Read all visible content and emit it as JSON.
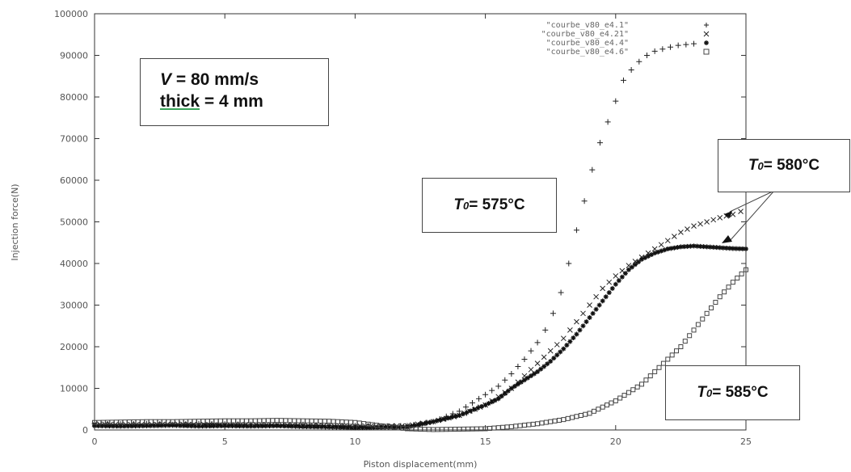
{
  "chart_data": {
    "type": "scatter",
    "title": "",
    "xlabel": "Piston displacement(mm)",
    "ylabel": "Injection force(N)",
    "xlim": [
      0,
      25
    ],
    "ylim": [
      0,
      100000
    ],
    "x_ticks": [
      0,
      5,
      10,
      15,
      20,
      25
    ],
    "x_tick_labels": [
      "0",
      "5",
      "10",
      "15",
      "20",
      "25"
    ],
    "y_ticks": [
      0,
      10000,
      20000,
      30000,
      40000,
      50000,
      60000,
      70000,
      80000,
      90000,
      100000
    ],
    "y_tick_labels": [
      "0",
      "10000",
      "20000",
      "30000",
      "40000",
      "50000",
      "60000",
      "70000",
      "80000",
      "90000",
      "100000"
    ],
    "grid": false,
    "legend_position": "top-right",
    "series": [
      {
        "name": "\"courbe_v80_e4.1\"",
        "marker": "+",
        "x": [
          0,
          1,
          2,
          3,
          4,
          5,
          6,
          7,
          8,
          9,
          10,
          11,
          12,
          13,
          14,
          15,
          15.5,
          16,
          16.5,
          17,
          17.3,
          17.6,
          17.9,
          18.2,
          18.5,
          18.8,
          19.1,
          19.4,
          19.7,
          20,
          20.3,
          20.6,
          20.9,
          21.2,
          21.5,
          21.8,
          22.1,
          22.4,
          22.7,
          23.0
        ],
        "y": [
          1500,
          1400,
          1500,
          1300,
          1500,
          1400,
          1300,
          1200,
          1300,
          1100,
          1000,
          900,
          1000,
          2000,
          4500,
          8500,
          10500,
          13500,
          17000,
          21000,
          24000,
          28000,
          33000,
          40000,
          48000,
          55000,
          62500,
          69000,
          74000,
          79000,
          84000,
          86500,
          88500,
          90000,
          91000,
          91500,
          92000,
          92400,
          92600,
          92800
        ]
      },
      {
        "name": "\"courbe_v80_e4.21\"",
        "marker": "x",
        "x": [
          0,
          1,
          2,
          3,
          4,
          5,
          6,
          7,
          8,
          9,
          10,
          11,
          12,
          13,
          14,
          15,
          15.5,
          16,
          16.5,
          17,
          17.5,
          18,
          18.5,
          19,
          19.5,
          20,
          20.5,
          21,
          21.5,
          22,
          22.5,
          23,
          23.5,
          24,
          24.5,
          24.8
        ],
        "y": [
          1400,
          1300,
          1300,
          1400,
          1300,
          1200,
          1300,
          1200,
          1100,
          1000,
          900,
          900,
          1000,
          2000,
          3500,
          6000,
          8000,
          10000,
          13000,
          16000,
          19000,
          22000,
          26000,
          30000,
          34000,
          37000,
          39500,
          41500,
          43500,
          45500,
          47500,
          49000,
          50000,
          51000,
          51800,
          52500
        ]
      },
      {
        "name": "\"courbe_v80_e4.4\"",
        "marker": "*",
        "x": [
          0,
          1,
          2,
          3,
          4,
          5,
          6,
          7,
          8,
          9,
          10,
          11,
          12,
          13,
          14,
          15,
          15.5,
          16,
          16.5,
          17,
          17.5,
          18,
          18.5,
          19,
          19.5,
          20,
          20.5,
          21,
          21.5,
          22,
          22.5,
          23,
          23.5,
          24,
          24.5,
          25
        ],
        "y": [
          1000,
          900,
          1000,
          1100,
          900,
          1000,
          900,
          1000,
          800,
          700,
          500,
          600,
          700,
          2000,
          3500,
          6000,
          7500,
          10000,
          12000,
          14000,
          16500,
          19500,
          23000,
          27000,
          31000,
          35000,
          38500,
          41000,
          42500,
          43500,
          44000,
          44200,
          44000,
          43800,
          43600,
          43500
        ]
      },
      {
        "name": "\"courbe_v80_e4.6\"",
        "marker": "square",
        "x": [
          0,
          1,
          2,
          3,
          4,
          5,
          6,
          7,
          8,
          9,
          10,
          11,
          12,
          13,
          14,
          15,
          16,
          17,
          18,
          19,
          20,
          21,
          21.5,
          22,
          22.5,
          23,
          23.5,
          24,
          24.5,
          25
        ],
        "y": [
          1800,
          1900,
          2000,
          2000,
          2100,
          2200,
          2200,
          2300,
          2200,
          2100,
          1800,
          1000,
          300,
          100,
          200,
          300,
          800,
          1500,
          2500,
          4000,
          7000,
          11000,
          14000,
          17000,
          20000,
          24000,
          28000,
          32000,
          35500,
          38500
        ]
      }
    ],
    "annotations": {
      "params_line1_sym": "V",
      "params_line1_rest": " = 80 mm/s",
      "params_line2_word": "thick",
      "params_line2_rest": " = 4 mm",
      "t575_sym": "T",
      "t575_sub": "0",
      "t575_rest": " = 575°C",
      "t580_sym": "T",
      "t580_sub": "0",
      "t580_rest": " = 580°C",
      "t585_sym": "T",
      "t585_sub": "0",
      "t585_rest": " = 585°C"
    }
  }
}
